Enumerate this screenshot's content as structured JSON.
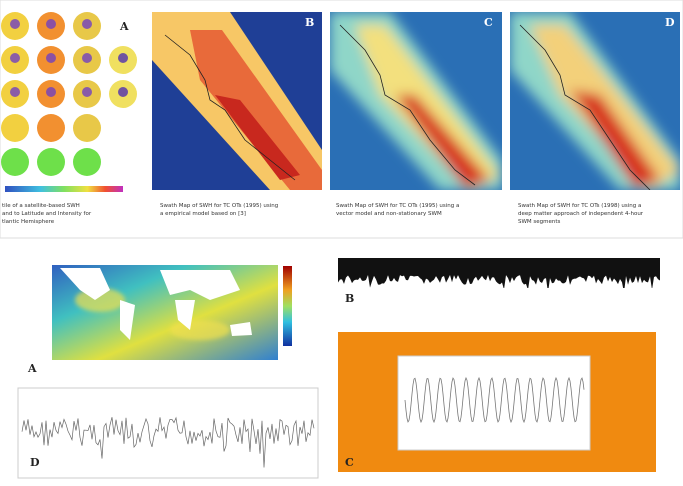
{
  "top_figure": {
    "panels": [
      {
        "letter": "A",
        "caption": [
          "tile of a satellite-based SWH",
          "and to Latitude and Intensity for",
          "tlantic Hemisphere"
        ]
      },
      {
        "letter": "B",
        "caption": [
          "Swath Map of SWH for TC OTs (1995) using",
          "a empirical model based on [3]"
        ]
      },
      {
        "letter": "C",
        "caption": [
          "Swath Map of SWH for TC OTs (1995) using a",
          "vector model and non-stationary SWM"
        ]
      },
      {
        "letter": "D",
        "caption": [
          "Swath Map of SWH for TC OTs (1998) using a",
          "deep matter approach of independent 4-hour",
          "SWM segments"
        ]
      }
    ]
  },
  "bottom_left": {
    "map_letter": "A",
    "series_letter": "D"
  },
  "bottom_right": {
    "top_letter": "B",
    "bottom_letter": "C"
  }
}
